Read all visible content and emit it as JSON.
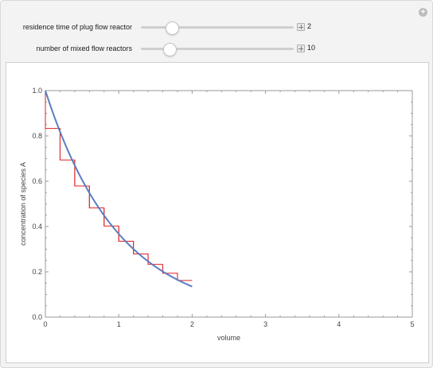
{
  "controls": {
    "residence_time": {
      "label": "residence time of plug flow reactor",
      "value": "2",
      "min": 0,
      "max": 10
    },
    "num_reactors": {
      "label": "number of mixed flow reactors",
      "value": "10",
      "min": 1,
      "max": 50
    }
  },
  "icons": {
    "corner": "plus-circle-icon",
    "slider_toggle": "plus-square-icon"
  },
  "colors": {
    "plug_flow_curve": "#5a7ec0",
    "mixed_flow_steps": "#e02020",
    "frame": "#9a9a9a"
  },
  "chart_data": {
    "type": "line",
    "xlabel": "volume",
    "ylabel": "concentration of species A",
    "xlim": [
      0,
      5
    ],
    "ylim": [
      0,
      1
    ],
    "x_ticks": [
      "0",
      "1",
      "2",
      "3",
      "4",
      "5"
    ],
    "y_ticks": [
      "0.0",
      "0.2",
      "0.4",
      "0.6",
      "0.8",
      "1.0"
    ],
    "grid": false,
    "series": [
      {
        "kind": "curve",
        "x": [
          0,
          0.2,
          0.4,
          0.6,
          0.8,
          1.0,
          1.2,
          1.4,
          1.6,
          1.8,
          2.0
        ],
        "y": [
          1.0,
          0.819,
          0.67,
          0.549,
          0.449,
          0.368,
          0.301,
          0.247,
          0.202,
          0.165,
          0.135
        ]
      },
      {
        "kind": "steps",
        "x": [
          0,
          0.2,
          0.4,
          0.6,
          0.8,
          1.0,
          1.2,
          1.4,
          1.6,
          1.8,
          2.0
        ],
        "y": [
          1.0,
          0.833,
          0.694,
          0.579,
          0.482,
          0.402,
          0.335,
          0.279,
          0.233,
          0.194,
          0.162
        ]
      }
    ]
  }
}
